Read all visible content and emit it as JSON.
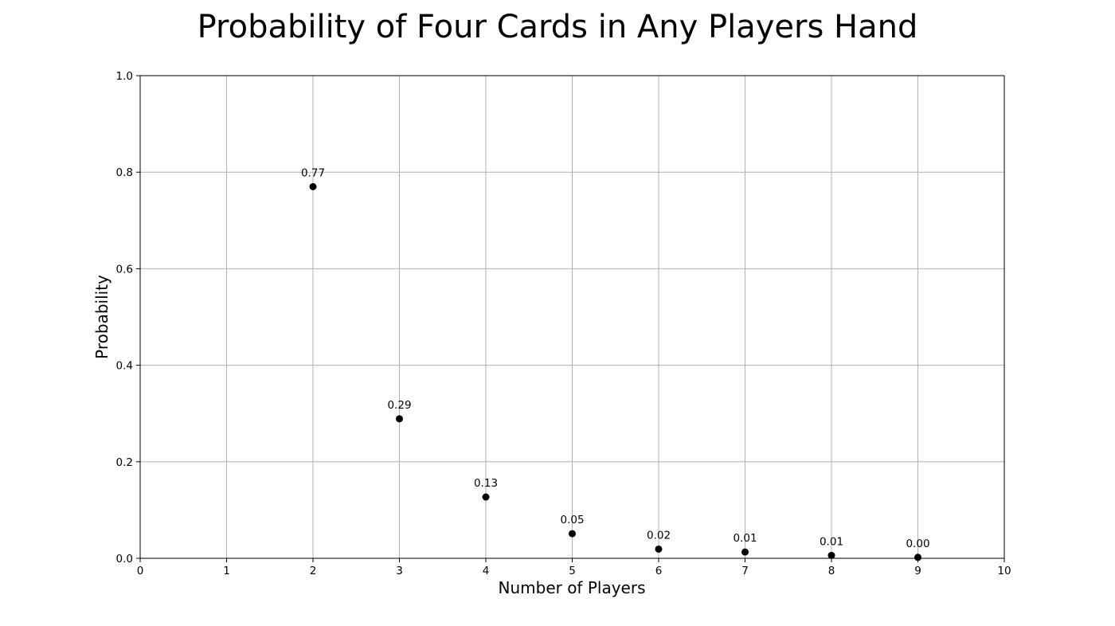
{
  "chart_data": {
    "type": "scatter",
    "title": "Probability of Four Cards in Any Players Hand",
    "xlabel": "Number of Players",
    "ylabel": "Probability",
    "xlim": [
      0,
      10
    ],
    "ylim": [
      0,
      1.0
    ],
    "xticks": [
      "0",
      "1",
      "2",
      "3",
      "4",
      "5",
      "6",
      "7",
      "8",
      "9",
      "10"
    ],
    "yticks": [
      "0.0",
      "0.2",
      "0.4",
      "0.6",
      "0.8",
      "1.0"
    ],
    "grid": true,
    "marker_color": "#000000",
    "series": [
      {
        "x": [
          2,
          3,
          4,
          5,
          6,
          7,
          8,
          9
        ],
        "y": [
          0.77,
          0.289,
          0.127,
          0.051,
          0.019,
          0.013,
          0.006,
          0.002
        ],
        "labels": [
          "0.77",
          "0.29",
          "0.13",
          "0.05",
          "0.02",
          "0.01",
          "0.01",
          "0.00"
        ]
      }
    ]
  }
}
